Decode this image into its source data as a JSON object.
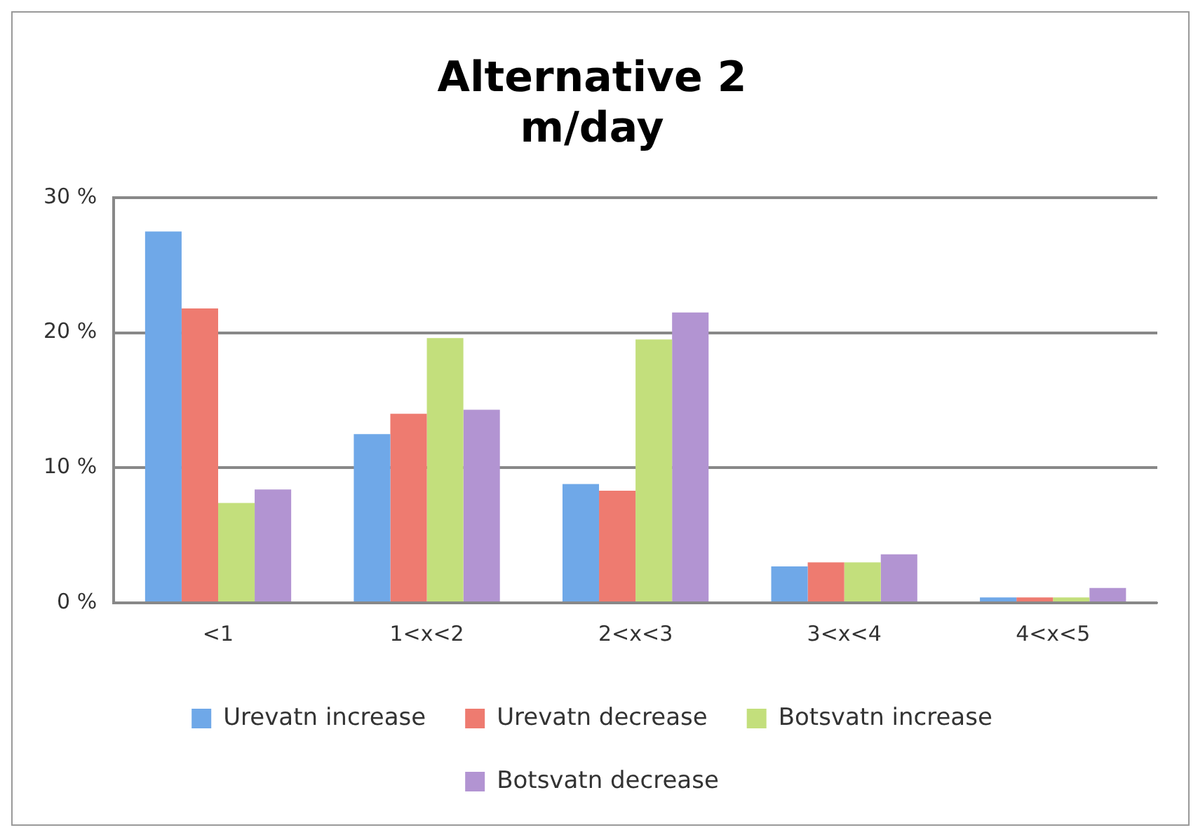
{
  "chart_data": {
    "type": "bar",
    "title": "Alternative 2\nm/day",
    "categories": [
      "<1",
      "1<x<2",
      "2<x<3",
      "3<x<4",
      "4<x<5"
    ],
    "series": [
      {
        "name": "Urevatn increase",
        "color": "#6fa8e8",
        "values": [
          27.5,
          12.5,
          8.8,
          2.7,
          0.4
        ]
      },
      {
        "name": "Urevatn decrease",
        "color": "#ee7b70",
        "values": [
          21.8,
          14.0,
          8.3,
          3.0,
          0.4
        ]
      },
      {
        "name": "Botsvatn increase",
        "color": "#c3df7c",
        "values": [
          7.4,
          19.6,
          19.5,
          3.0,
          0.4
        ]
      },
      {
        "name": "Botsvatn decrease",
        "color": "#b294d2",
        "values": [
          8.4,
          14.3,
          21.5,
          3.6,
          1.1
        ]
      }
    ],
    "ylim": [
      0,
      30
    ],
    "yticks": [
      {
        "value": 0,
        "label": "0 %"
      },
      {
        "value": 10,
        "label": "10 %"
      },
      {
        "value": 20,
        "label": "20 %"
      },
      {
        "value": 30,
        "label": "30 %"
      }
    ],
    "grid": "y",
    "legend": "bottom"
  }
}
